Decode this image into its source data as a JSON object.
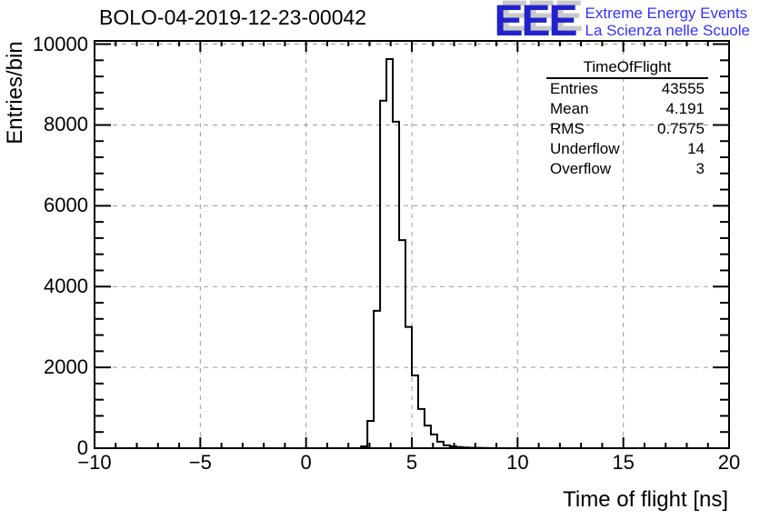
{
  "page": {
    "background": "#ffffff",
    "accent_black": "#000000",
    "grid_color": "#9b9b9b"
  },
  "header": {
    "title": "BOLO-04-2019-12-23-00042",
    "logo": {
      "acronym": "EEE",
      "line1": "Extreme Energy Events",
      "line2": "La Scienza nelle Scuole",
      "acronym_color": "#2222cc",
      "text_color": "#3333ff",
      "shadow_color": "#c9c9c9"
    }
  },
  "stats_box": {
    "title": "TimeOfFlight",
    "rows": [
      {
        "label": "Entries",
        "value": "43555"
      },
      {
        "label": "Mean",
        "value": "4.191"
      },
      {
        "label": "RMS",
        "value": "0.7575"
      },
      {
        "label": "Underflow",
        "value": "14"
      },
      {
        "label": "Overflow",
        "value": "3"
      }
    ]
  },
  "chart_data": {
    "type": "bar",
    "title": "BOLO-04-2019-12-23-00042",
    "xlabel": "Time of flight [ns]",
    "ylabel": "Entries/bin",
    "xlim": [
      -10,
      20
    ],
    "ylim": [
      0,
      10080
    ],
    "grid": true,
    "grid_style": "dashed gray at major ticks",
    "legend_position": "none",
    "xticks": {
      "values": [
        -10,
        -5,
        0,
        5,
        10,
        15,
        20
      ],
      "labels": [
        "−10",
        "−5",
        "0",
        "5",
        "10",
        "15",
        "20"
      ],
      "minor_step": 1
    },
    "yticks": {
      "values": [
        0,
        2000,
        4000,
        6000,
        8000,
        10000
      ],
      "labels": [
        "0",
        "2000",
        "4000",
        "6000",
        "8000",
        "10000"
      ],
      "minor_step": 400
    },
    "bins": {
      "bin_width": 0.3,
      "left_edges": [
        2.6,
        2.9,
        3.2,
        3.5,
        3.8,
        4.1,
        4.4,
        4.7,
        5.0,
        5.3,
        5.6,
        5.9,
        6.2,
        6.5,
        6.8,
        7.1,
        7.4,
        7.7,
        8.0,
        8.3,
        8.6
      ],
      "counts": [
        45,
        675,
        3400,
        8600,
        9630,
        8080,
        5150,
        3000,
        1800,
        970,
        560,
        340,
        160,
        70,
        45,
        28,
        18,
        12,
        8,
        5,
        3
      ]
    },
    "line_color": "#000000"
  }
}
